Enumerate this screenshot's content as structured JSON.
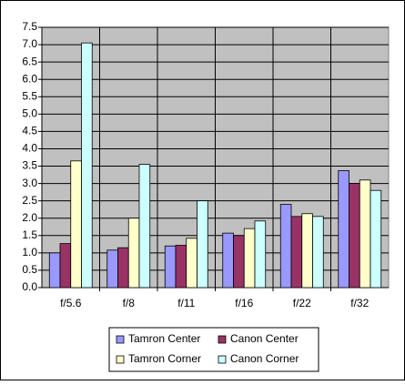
{
  "chart_data": {
    "type": "bar",
    "categories": [
      "f/5.6",
      "f/8",
      "f/11",
      "f/16",
      "f/22",
      "f/32"
    ],
    "series": [
      {
        "name": "Tamron Center",
        "color": "#9999ff",
        "values": [
          1.0,
          1.08,
          1.2,
          1.57,
          2.4,
          3.37
        ]
      },
      {
        "name": "Canon Center",
        "color": "#993366",
        "values": [
          1.27,
          1.15,
          1.22,
          1.5,
          2.05,
          3.0
        ]
      },
      {
        "name": "Tamron Corner",
        "color": "#ffffcc",
        "values": [
          3.65,
          2.0,
          1.42,
          1.7,
          2.13,
          3.1
        ]
      },
      {
        "name": "Canon Corner",
        "color": "#ccffff",
        "values": [
          7.05,
          3.55,
          2.5,
          1.92,
          2.05,
          2.8
        ]
      }
    ],
    "ylim": [
      0,
      7.5
    ],
    "yticks": [
      {
        "value": 0,
        "label": "0.0"
      },
      0.5,
      {
        "value": 1,
        "label": "1.0"
      },
      1.5,
      {
        "value": 2,
        "label": "2.0"
      },
      2.5,
      {
        "value": 3,
        "label": "3.0"
      },
      3.5,
      {
        "value": 4,
        "label": "4.0"
      },
      4.5,
      {
        "value": 5,
        "label": "5.0"
      },
      5.5,
      {
        "value": 6,
        "label": "6.0"
      },
      6.5,
      {
        "value": 7,
        "label": "7.0"
      },
      7.5
    ],
    "grid": true,
    "legend": "bottom"
  }
}
